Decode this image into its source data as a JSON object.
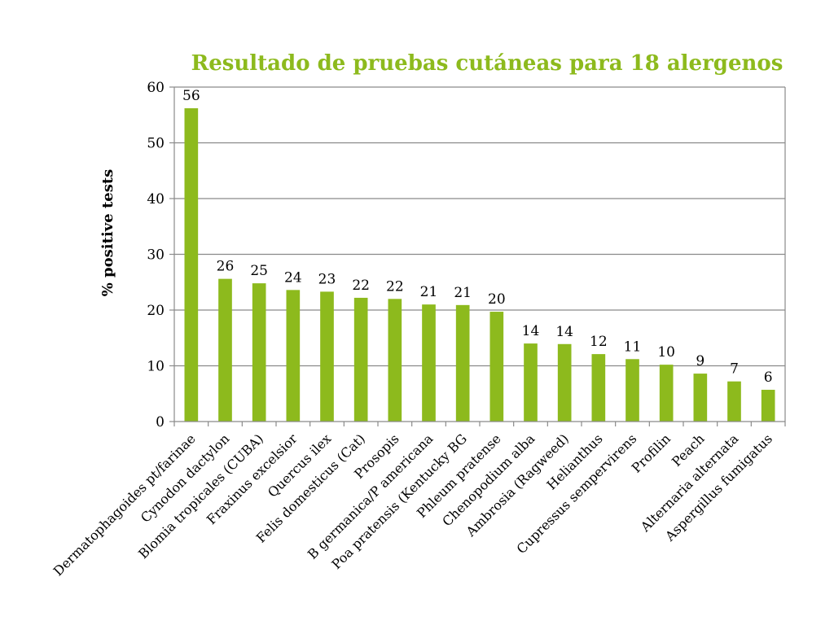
{
  "chart_data": {
    "type": "bar",
    "title": "Resultado de pruebas cutáneas para 18 alergenos",
    "xlabel": "",
    "ylabel": "% positive tests",
    "ylim": [
      0,
      60
    ],
    "yticks": [
      0,
      10,
      20,
      30,
      40,
      50,
      60
    ],
    "grid": true,
    "legend": "none",
    "bar_color": "#8DBA1D",
    "title_color": "#8DBA1D",
    "categories": [
      "Dermatophagoides pt/farinae",
      "Cynodon dactylon",
      "Blomia tropicales (CUBA)",
      "Fraxinus excelsior",
      "Quercus ilex",
      "Felis domesticus (Cat)",
      "Prosopis",
      "B germanica/P americana",
      "Poa pratensis (Kentucky BG",
      "Phleum pratense",
      "Chenopodium alba",
      "Ambrosia (Ragweed)",
      "Helianthus",
      "Cupressus sempervirens",
      "Profilin",
      "Peach",
      "Alternaria alternata",
      "Aspergillus fumigatus"
    ],
    "values": [
      56.2,
      25.6,
      24.8,
      23.6,
      23.3,
      22.2,
      22.0,
      21.0,
      20.9,
      19.7,
      14.0,
      13.9,
      12.1,
      11.2,
      10.2,
      8.6,
      7.2,
      5.7
    ],
    "data_labels": [
      "56",
      "26",
      "25",
      "24",
      "23",
      "22",
      "22",
      "21",
      "21",
      "20",
      "14",
      "14",
      "12",
      "11",
      "10",
      "9",
      "7",
      "6"
    ]
  }
}
